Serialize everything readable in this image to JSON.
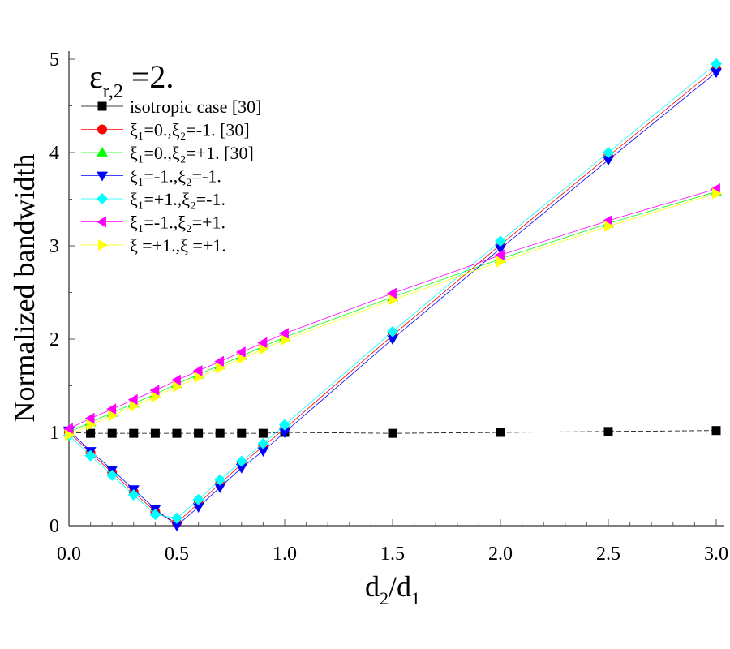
{
  "chart_data": {
    "type": "line",
    "xlabel": "d2/d1",
    "ylabel": "Normalized bandwidth",
    "annotation": "εr,2 =2.",
    "xlim": [
      0,
      3
    ],
    "ylim": [
      0,
      5
    ],
    "xticks": [
      "0.0",
      "0.5",
      "1.0",
      "1.5",
      "2.0",
      "2.5",
      "3.0"
    ],
    "yticks": [
      "0",
      "1",
      "2",
      "3",
      "4",
      "5"
    ],
    "grid": false,
    "legend_position": "top-left",
    "x": [
      0,
      0.1,
      0.2,
      0.3,
      0.4,
      0.5,
      0.6,
      0.7,
      0.8,
      0.9,
      1.0,
      1.5,
      2.0,
      2.5,
      3.0
    ],
    "series": [
      {
        "name": "isotropic case [30]",
        "color": "#000000",
        "marker": "square",
        "values": [
          1.0,
          0.99,
          0.99,
          0.99,
          0.99,
          0.99,
          0.99,
          0.99,
          0.99,
          0.99,
          1.0,
          0.99,
          1.0,
          1.01,
          1.02
        ]
      },
      {
        "name": "ξ₁=0.,ξ₂=-1. [30]",
        "color": "#ff0000",
        "marker": "circle",
        "values": [
          1.0,
          0.78,
          0.57,
          0.36,
          0.15,
          0.03,
          0.24,
          0.45,
          0.66,
          0.85,
          1.04,
          2.04,
          3.01,
          3.96,
          4.9
        ]
      },
      {
        "name": "ξ₁=0.,ξ₂=+1. [30]",
        "color": "#00ff00",
        "marker": "triangle-up",
        "values": [
          1.0,
          1.11,
          1.21,
          1.31,
          1.41,
          1.52,
          1.62,
          1.72,
          1.82,
          1.92,
          2.02,
          2.45,
          2.86,
          3.24,
          3.58
        ]
      },
      {
        "name": "ξ₁=-1.,ξ₂=-1.",
        "color": "#0000ff",
        "marker": "triangle-down",
        "values": [
          1.02,
          0.8,
          0.6,
          0.39,
          0.18,
          0.0,
          0.2,
          0.41,
          0.62,
          0.8,
          1.0,
          2.0,
          2.97,
          3.92,
          4.86
        ]
      },
      {
        "name": "ξ₁=+1.,ξ₂=-1.",
        "color": "#00ffff",
        "marker": "diamond",
        "values": [
          0.97,
          0.75,
          0.54,
          0.33,
          0.12,
          0.08,
          0.28,
          0.49,
          0.69,
          0.88,
          1.08,
          2.08,
          3.05,
          4.0,
          4.95
        ]
      },
      {
        "name": "ξ₁=-1.,ξ₂=+1.",
        "color": "#ff00ff",
        "marker": "triangle-left",
        "values": [
          1.04,
          1.15,
          1.25,
          1.35,
          1.45,
          1.56,
          1.66,
          1.76,
          1.86,
          1.96,
          2.06,
          2.49,
          2.9,
          3.27,
          3.61
        ]
      },
      {
        "name": "ξ  =+1.,ξ  =+1.",
        "color": "#ffff00",
        "marker": "triangle-right",
        "values": [
          0.97,
          1.08,
          1.18,
          1.28,
          1.38,
          1.49,
          1.59,
          1.69,
          1.79,
          1.89,
          1.99,
          2.42,
          2.83,
          3.21,
          3.56
        ]
      }
    ]
  }
}
